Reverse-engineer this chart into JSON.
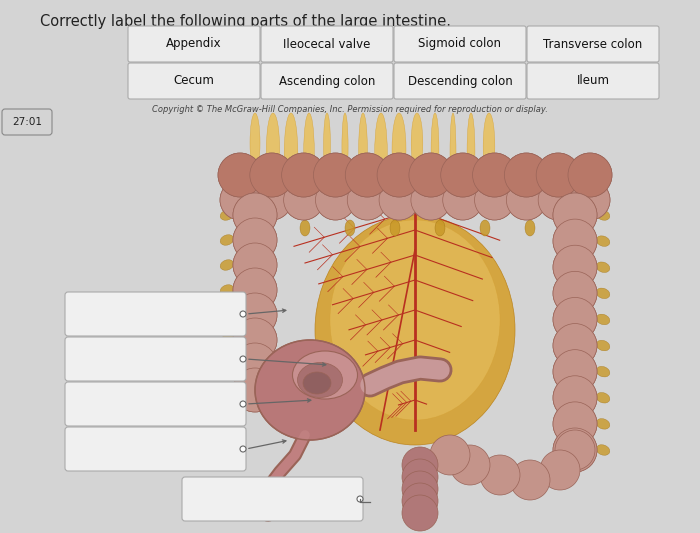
{
  "title": "Correctly label the following parts of the large intestine.",
  "title_fontsize": 10.5,
  "copyright_text": "Copyright © The McGraw-Hill Companies, Inc. Permission required for reproduction or display.",
  "copyright_fontsize": 6,
  "timer_text": "27:01",
  "background_color": "#d4d4d4",
  "row1_buttons": [
    "Appendix",
    "Ileocecal valve",
    "Sigmoid colon",
    "Transverse colon"
  ],
  "row2_buttons": [
    "Cecum",
    "Ascending colon",
    "Descending colon",
    "Ileum"
  ],
  "colon_pink": "#c4948a",
  "colon_dark": "#9a6458",
  "colon_mid": "#b07870",
  "mesentery_yellow": "#d4a030",
  "mesentery_light": "#e8c060",
  "vessel_red": "#b83020",
  "fat_yellow": "#c89828",
  "btn_color": "#ececec",
  "btn_border": "#aaaaaa",
  "blank_color": "#f0f0f0",
  "blank_border": "#aaaaaa",
  "line_color": "#666666"
}
